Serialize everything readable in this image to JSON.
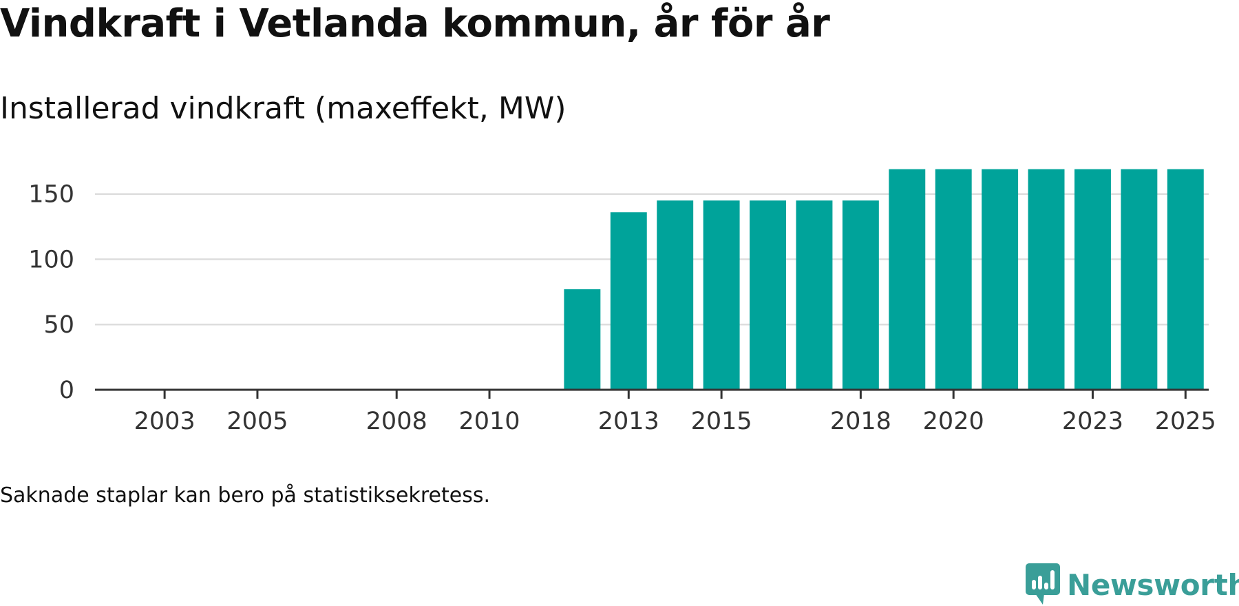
{
  "title": "Vindkraft i Vetlanda kommun, år för år",
  "subtitle": "Installerad vindkraft (maxeffekt, MW)",
  "footnote": "Saknade staplar kan bero på statistiksekretess.",
  "brand": {
    "name": "Newsworthy",
    "color": "#3a9e98"
  },
  "colors": {
    "bar": "#00a39a",
    "grid": "#dddddd",
    "axis": "#333333"
  },
  "chart_data": {
    "type": "bar",
    "title": "Vindkraft i Vetlanda kommun, år för år",
    "ylabel": "Installerad vindkraft (maxeffekt, MW)",
    "xlabel": "",
    "categories": [
      2002,
      2003,
      2004,
      2005,
      2006,
      2007,
      2008,
      2009,
      2010,
      2011,
      2012,
      2013,
      2014,
      2015,
      2016,
      2017,
      2018,
      2019,
      2020,
      2021,
      2022,
      2023,
      2024,
      2025
    ],
    "values": [
      0,
      0,
      0,
      0,
      0,
      0,
      0,
      0,
      0,
      0,
      77,
      136,
      145,
      145,
      145,
      145,
      145,
      169,
      169,
      169,
      169,
      169,
      169,
      169
    ],
    "x_tick_labels": [
      "2003",
      "2005",
      "2008",
      "2010",
      "2013",
      "2015",
      "2018",
      "2020",
      "2023",
      "2025"
    ],
    "y_ticks": [
      0,
      50,
      100,
      150
    ],
    "ylim": [
      0,
      172
    ],
    "grid": true,
    "legend": "none"
  }
}
